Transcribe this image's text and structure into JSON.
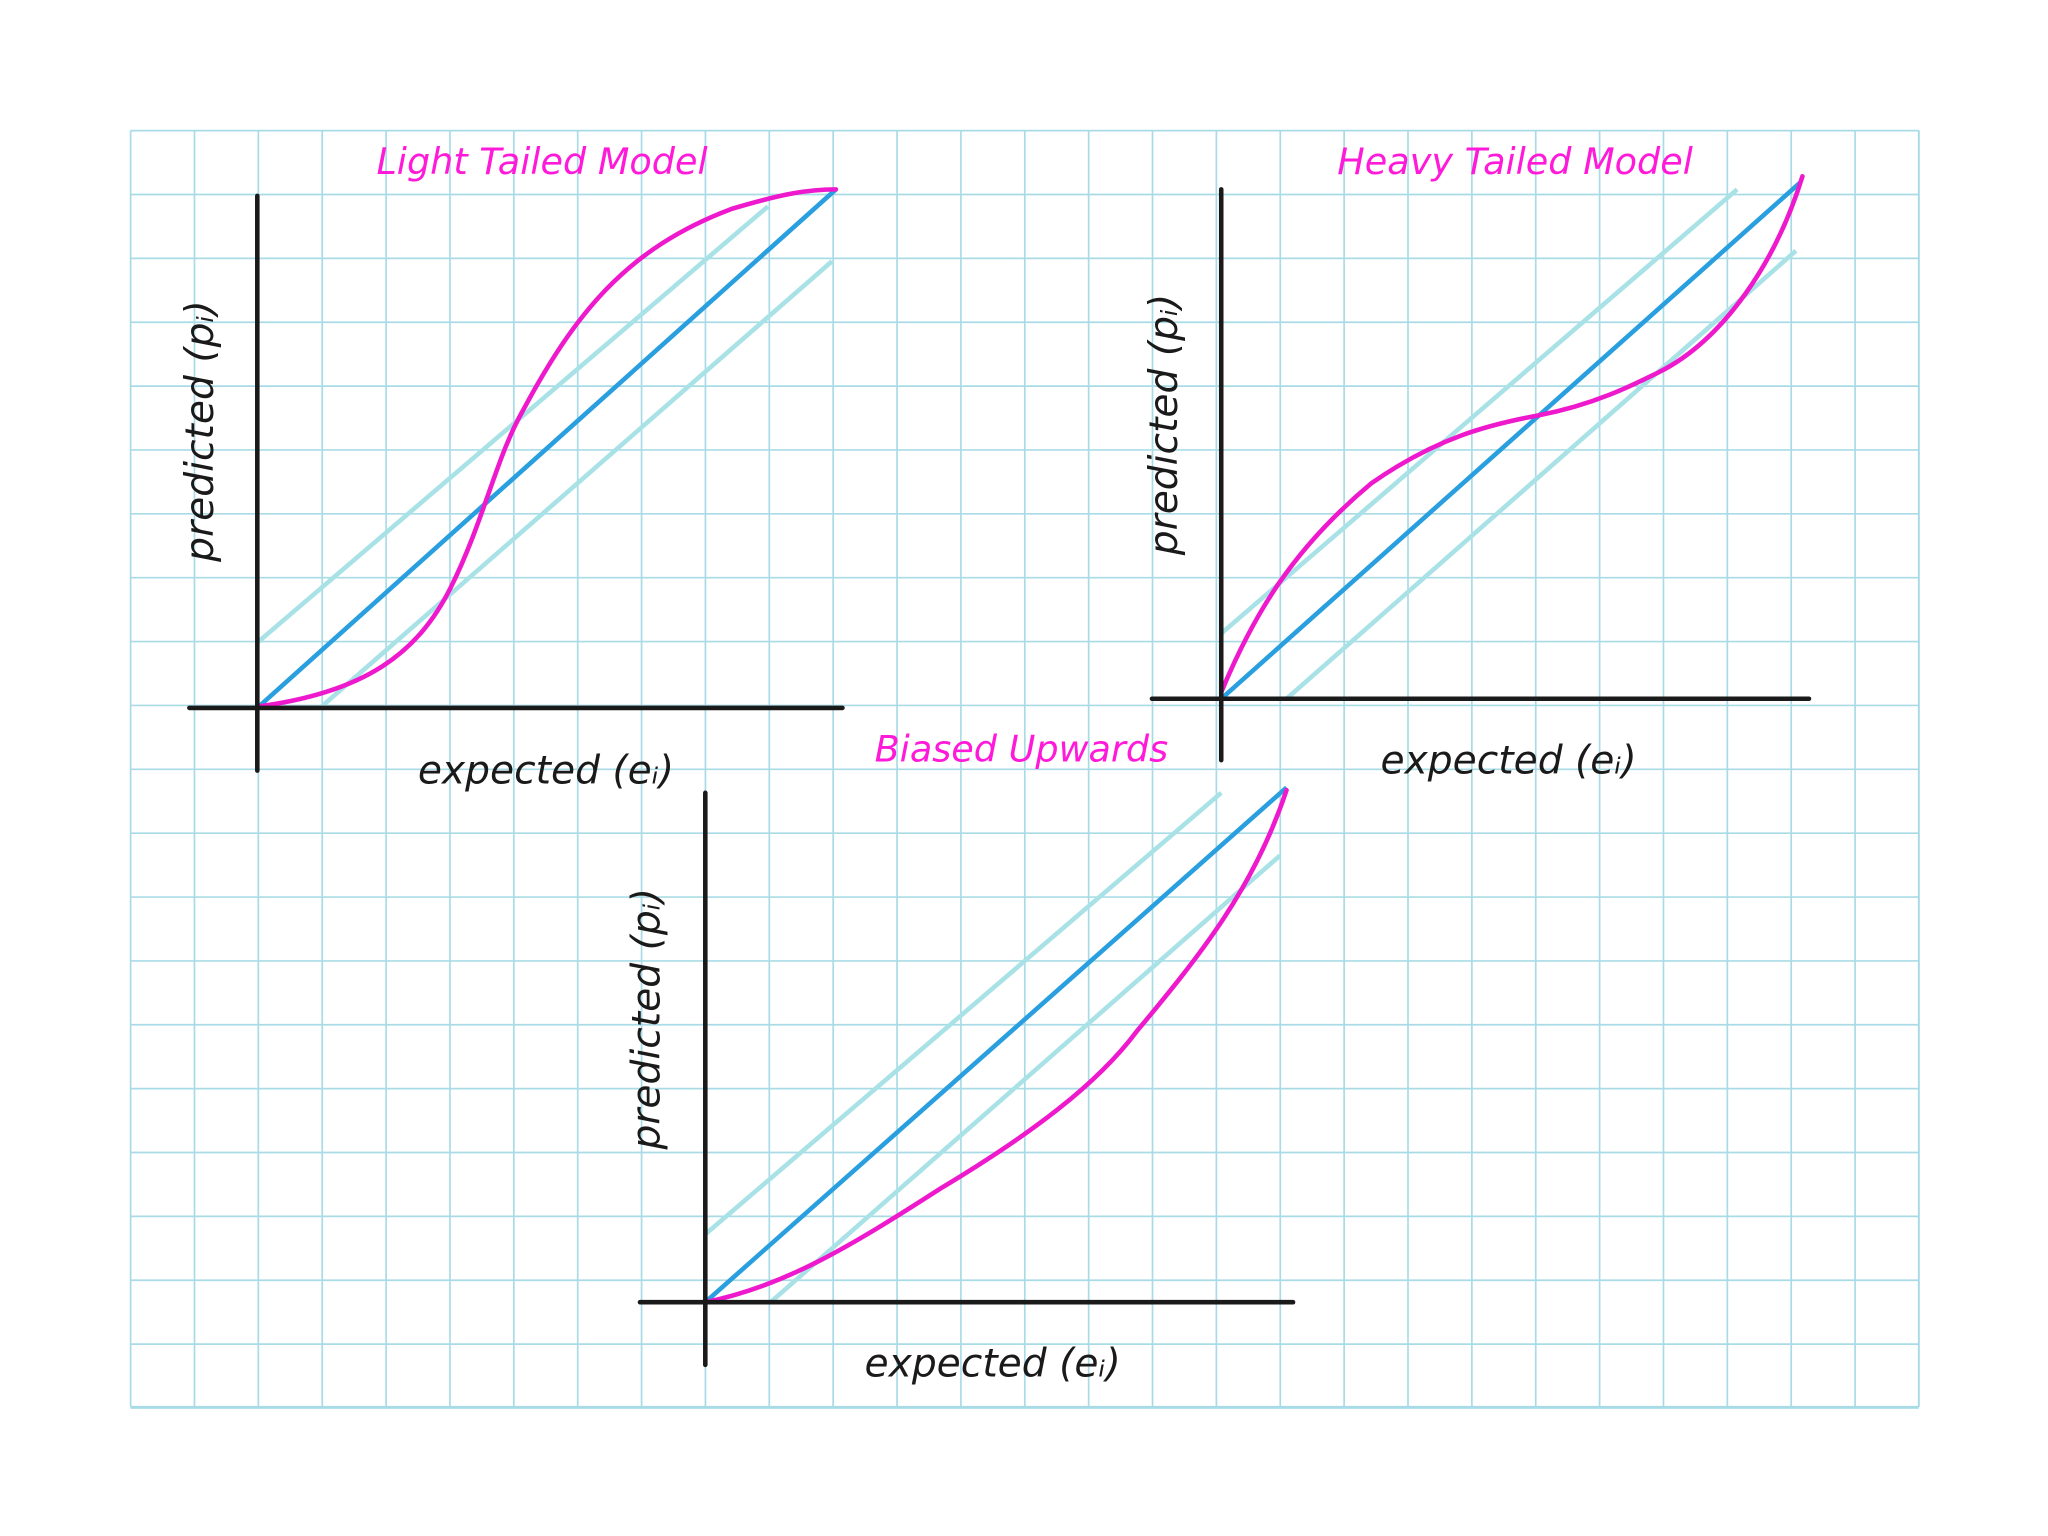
{
  "plots": [
    {
      "title": "Light Tailed Model",
      "y_label": "predicted (pᵢ)",
      "x_label": "expected (eᵢ)"
    },
    {
      "title": "Heavy Tailed Model",
      "y_label": "predicted (pᵢ)",
      "x_label": "expected (eᵢ)"
    },
    {
      "title": "Biased Upwards",
      "y_label": "predicted (pᵢ)",
      "x_label": "expected (eᵢ)"
    }
  ]
}
